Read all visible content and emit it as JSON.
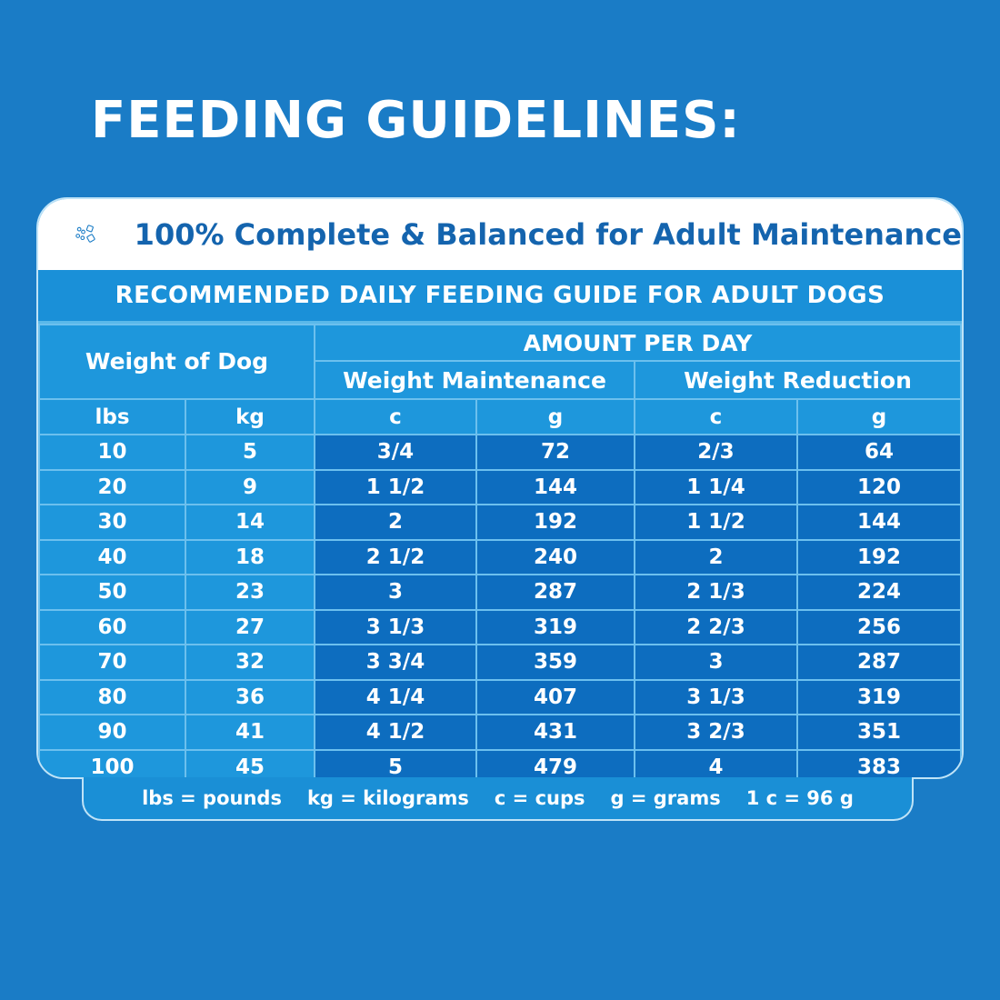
{
  "title": "FEEDING GUIDELINES:",
  "subtitle": "100% Complete & Balanced for Adult Maintenance",
  "subtitle_icon": "kibble-icon",
  "guide_title": "RECOMMENDED DAILY FEEDING GUIDE FOR ADULT DOGS",
  "headers": {
    "weight": "Weight of Dog",
    "amount": "AMOUNT PER DAY",
    "maintenance": "Weight Maintenance",
    "reduction": "Weight Reduction",
    "units": [
      "lbs",
      "kg",
      "c",
      "g",
      "c",
      "g"
    ]
  },
  "rows": [
    [
      "10",
      "5",
      "3/4",
      "72",
      "2/3",
      "64"
    ],
    [
      "20",
      "9",
      "1 1/2",
      "144",
      "1 1/4",
      "120"
    ],
    [
      "30",
      "14",
      "2",
      "192",
      "1 1/2",
      "144"
    ],
    [
      "40",
      "18",
      "2 1/2",
      "240",
      "2",
      "192"
    ],
    [
      "50",
      "23",
      "3",
      "287",
      "2 1/3",
      "224"
    ],
    [
      "60",
      "27",
      "3 1/3",
      "319",
      "2 2/3",
      "256"
    ],
    [
      "70",
      "32",
      "3 3/4",
      "359",
      "3",
      "287"
    ],
    [
      "80",
      "36",
      "4 1/4",
      "407",
      "3 1/3",
      "319"
    ],
    [
      "90",
      "41",
      "4 1/2",
      "431",
      "3 2/3",
      "351"
    ],
    [
      "100",
      "45",
      "5",
      "479",
      "4",
      "383"
    ]
  ],
  "legend": [
    "lbs = pounds",
    "kg = kilograms",
    "c = cups",
    "g = grams",
    "1 c = 96 g"
  ],
  "colors": {
    "background": "#1a7cc6",
    "dark_cell": "#0d6dbf",
    "light_cell": "#1e97dc",
    "subtitle": "#1464ae"
  }
}
